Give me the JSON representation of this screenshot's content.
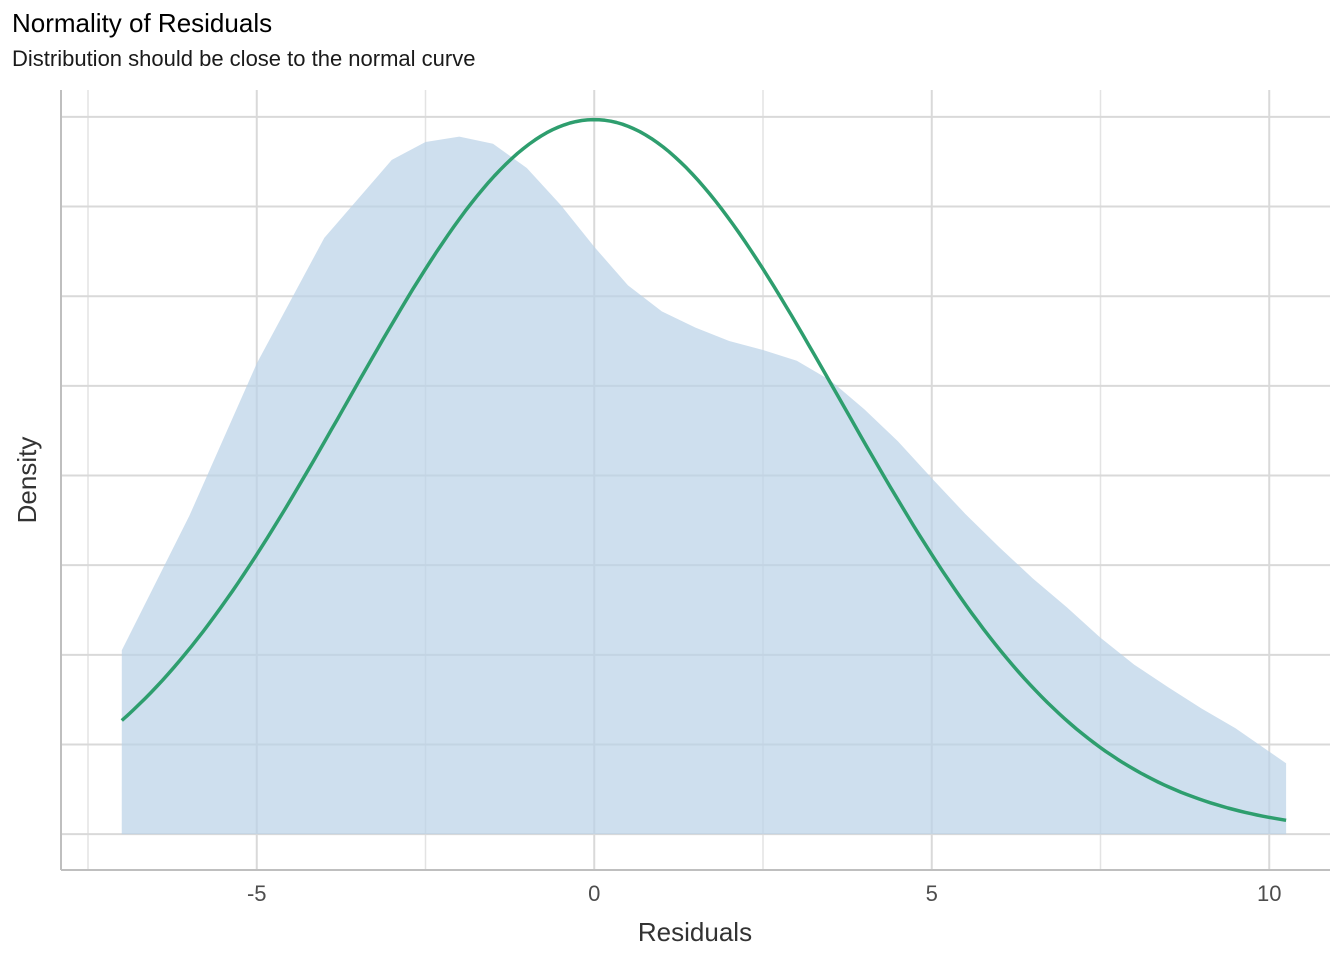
{
  "chart_data": {
    "type": "area",
    "title": "Normality of Residuals",
    "subtitle": "Distribution should be close to the normal curve",
    "xlabel": "Residuals",
    "ylabel": "Density",
    "xlim": [
      -7.9,
      10.9
    ],
    "ylim": [
      -0.004,
      0.083
    ],
    "x_ticks": [
      -5,
      0,
      5,
      10
    ],
    "x_tick_labels": [
      "-5",
      "0",
      "5",
      "10"
    ],
    "y_tick_labels_shown": false,
    "grid": true,
    "series": [
      {
        "kind": "density-area",
        "color": "#b9d2e7",
        "x": [
          -7,
          -6,
          -5,
          -4,
          -3,
          -2.5,
          -2,
          -1.5,
          -1,
          -0.5,
          0,
          0.5,
          1,
          1.5,
          2,
          2.5,
          3,
          3.5,
          4,
          4.5,
          5,
          5.5,
          6,
          6.5,
          7,
          7.5,
          8,
          8.5,
          9,
          9.5,
          10.25
        ],
        "y": [
          0.0205,
          0.0355,
          0.0525,
          0.0665,
          0.0752,
          0.0772,
          0.0778,
          0.077,
          0.0743,
          0.0702,
          0.0655,
          0.0612,
          0.0583,
          0.0565,
          0.055,
          0.054,
          0.0528,
          0.0506,
          0.0474,
          0.0438,
          0.0397,
          0.0357,
          0.032,
          0.0285,
          0.0253,
          0.0219,
          0.0189,
          0.0164,
          0.014,
          0.0118,
          0.0079
        ]
      },
      {
        "kind": "normal-curve",
        "color": "#2e9e6e",
        "mean": 0,
        "sd": 3.65,
        "peak": 0.0797,
        "x_range": [
          -7,
          10.25
        ]
      }
    ]
  }
}
